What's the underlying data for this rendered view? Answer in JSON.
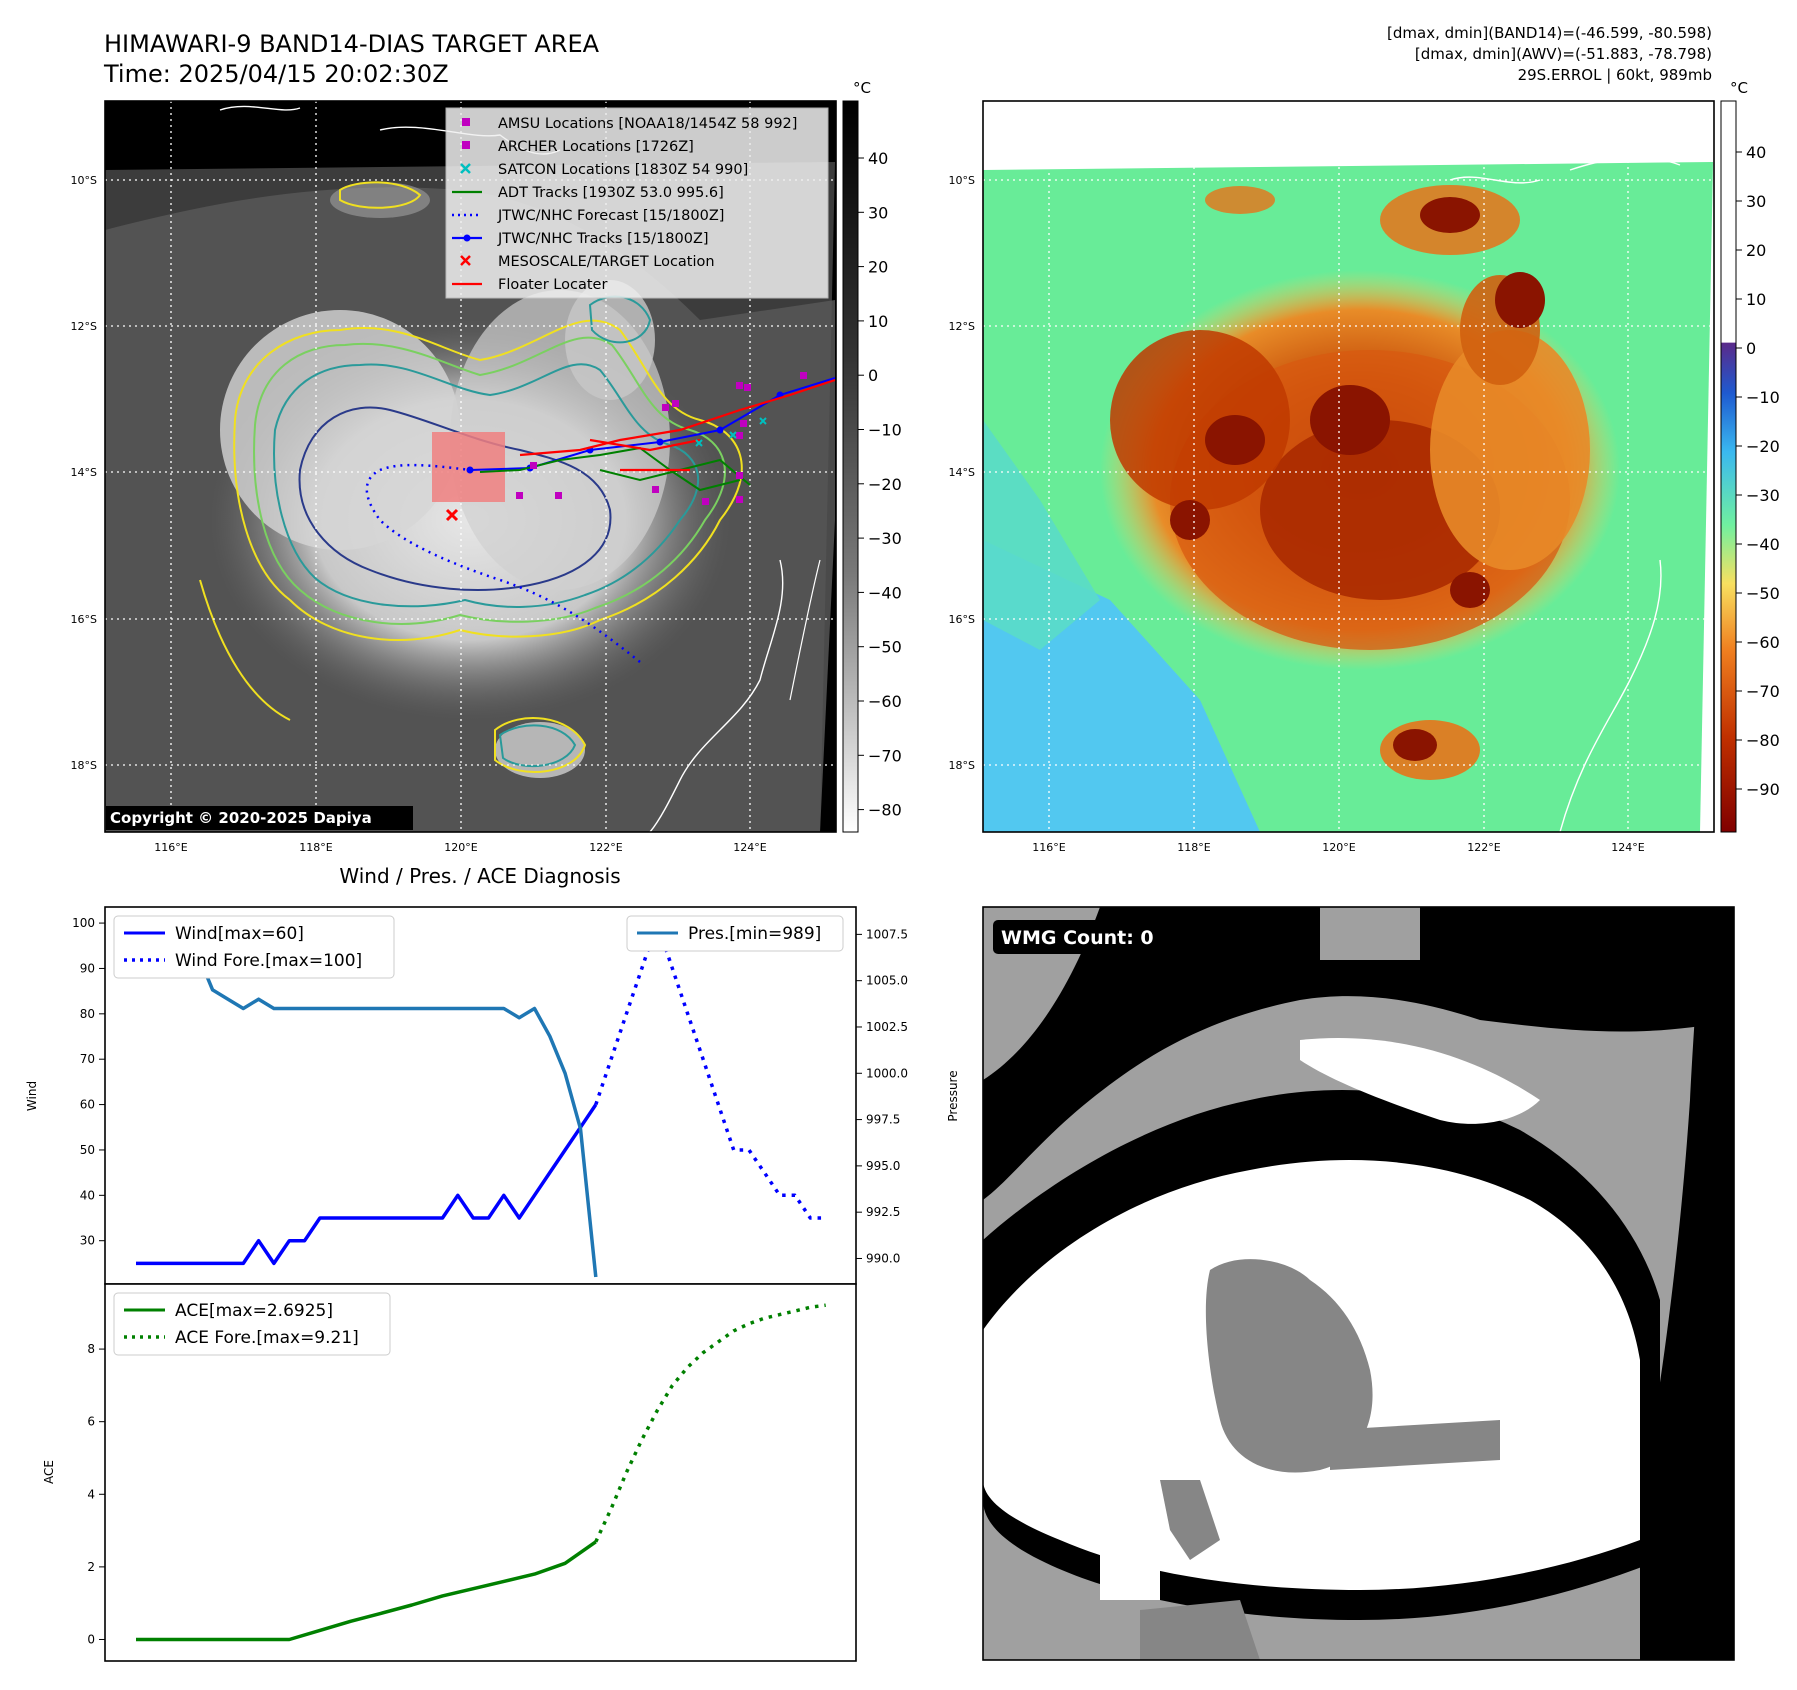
{
  "header": {
    "title": "HIMAWARI-9 BAND14-DIAS TARGET AREA",
    "time": "Time: 2025/04/15 20:02:30Z",
    "info1": "[dmax, dmin](BAND14)=(-46.599, -80.598)",
    "info2": "[dmax, dmin](AWV)=(-51.883, -78.798)",
    "info3": "29S.ERROL | 60kt, 989mb"
  },
  "map": {
    "lat_labels": [
      "10°S",
      "12°S",
      "14°S",
      "16°S",
      "18°S"
    ],
    "lon_labels": [
      "116°E",
      "118°E",
      "120°E",
      "122°E",
      "124°E"
    ],
    "copyright": "Copyright © 2020-2025 Dapiya",
    "legend": [
      {
        "label": "AMSU Locations [NOAA18/1454Z 58 992]",
        "marker": "square",
        "color": "#c000c0"
      },
      {
        "label": "ARCHER Locations [1726Z]",
        "marker": "square",
        "color": "#c000c0"
      },
      {
        "label": "SATCON Locations [1830Z 54 990]",
        "marker": "x",
        "color": "#00bfbf"
      },
      {
        "label": "ADT Tracks [1930Z 53.0 995.6]",
        "marker": "line",
        "color": "#008000"
      },
      {
        "label": "JTWC/NHC Forecast [15/1800Z]",
        "marker": "dotted",
        "color": "#0000ff"
      },
      {
        "label": "JTWC/NHC Tracks [15/1800Z]",
        "marker": "line-dot",
        "color": "#0000ff"
      },
      {
        "label": "MESOSCALE/TARGET Location",
        "marker": "x",
        "color": "#ff0000"
      },
      {
        "label": "Floater Locater",
        "marker": "line",
        "color": "#ff0000"
      }
    ]
  },
  "colorbar_gray": {
    "unit": "°C",
    "ticks": [
      "40",
      "30",
      "20",
      "10",
      "0",
      "−10",
      "−20",
      "−30",
      "−40",
      "−50",
      "−60",
      "−70",
      "−80"
    ]
  },
  "colorbar_color": {
    "unit": "°C",
    "ticks": [
      "40",
      "30",
      "20",
      "10",
      "0",
      "−10",
      "−20",
      "−30",
      "−40",
      "−50",
      "−60",
      "−70",
      "−80",
      "−90"
    ],
    "stops": [
      "#ffffff",
      "#5a2a8a",
      "#1e5ad0",
      "#3ab8f0",
      "#70f0a0",
      "#f8e060",
      "#f08020",
      "#c03000",
      "#800000"
    ]
  },
  "chart_data": [
    {
      "type": "line",
      "title": "Wind / Pres. / ACE Diagnosis",
      "ylabel": "Wind",
      "ylabel_right": "Pressure",
      "ylim": [
        22,
        102
      ],
      "ylim_right": [
        989,
        1008.6
      ],
      "yticks": [
        "30",
        "40",
        "50",
        "60",
        "70",
        "80",
        "90",
        "100"
      ],
      "yticks_right": [
        "990.0",
        "992.5",
        "995.0",
        "997.5",
        "1000.0",
        "1002.5",
        "1005.0",
        "1007.5"
      ],
      "legend_left": [
        "Wind[max=60]",
        "Wind Fore.[max=100]"
      ],
      "legend_right": [
        "Pres.[min=989]"
      ],
      "series": [
        {
          "name": "Wind[max=60]",
          "axis": "left",
          "style": "solid",
          "color": "#0000ff",
          "x": [
            0,
            1,
            2,
            3,
            4,
            5,
            6,
            7,
            8,
            9,
            10,
            11,
            12,
            13,
            14,
            15,
            16,
            17,
            18,
            19,
            20,
            21,
            22,
            23,
            24,
            25,
            26,
            27,
            28,
            29,
            30
          ],
          "y": [
            25,
            25,
            25,
            25,
            25,
            25,
            25,
            25,
            30,
            25,
            30,
            30,
            35,
            35,
            35,
            35,
            35,
            35,
            35,
            35,
            35,
            40,
            35,
            35,
            40,
            35,
            40,
            45,
            50,
            55,
            60
          ]
        },
        {
          "name": "Wind Fore.[max=100]",
          "axis": "left",
          "style": "dotted",
          "color": "#0000ff",
          "x": [
            30,
            31,
            32,
            33,
            34,
            35,
            36,
            37,
            38,
            39,
            40,
            41,
            42,
            43,
            44,
            45
          ],
          "y": [
            60,
            70,
            80,
            90,
            100,
            90,
            80,
            70,
            60,
            50,
            50,
            45,
            40,
            40,
            35,
            35
          ]
        },
        {
          "name": "Pres.[min=989]",
          "axis": "right",
          "style": "solid",
          "color": "#1f77b4",
          "x": [
            0,
            1,
            2,
            3,
            4,
            5,
            6,
            7,
            8,
            9,
            10,
            11,
            12,
            13,
            14,
            15,
            16,
            17,
            18,
            19,
            20,
            21,
            22,
            23,
            24,
            25,
            26,
            27,
            28,
            29,
            30
          ],
          "y": [
            1008,
            1007,
            1007,
            1006.5,
            1006.5,
            1004.5,
            1004,
            1003.5,
            1004,
            1003.5,
            1003.5,
            1003.5,
            1003.5,
            1003.5,
            1003.5,
            1003.5,
            1003.5,
            1003.5,
            1003.5,
            1003.5,
            1003.5,
            1003.5,
            1003.5,
            1003.5,
            1003.5,
            1003,
            1003.5,
            1002,
            1000,
            997,
            989
          ]
        }
      ]
    },
    {
      "type": "line",
      "ylabel": "ACE",
      "ylim": [
        -0.4,
        9.6
      ],
      "yticks": [
        "0",
        "2",
        "4",
        "6",
        "8"
      ],
      "legend": [
        "ACE[max=2.6925]",
        "ACE Fore.[max=9.21]"
      ],
      "series": [
        {
          "name": "ACE[max=2.6925]",
          "style": "solid",
          "color": "#008000",
          "x": [
            0,
            2,
            4,
            6,
            8,
            10,
            12,
            14,
            16,
            18,
            20,
            22,
            24,
            26,
            28,
            30
          ],
          "y": [
            0,
            0,
            0,
            0,
            0,
            0,
            0.25,
            0.5,
            0.72,
            0.95,
            1.2,
            1.4,
            1.6,
            1.8,
            2.1,
            2.69
          ]
        },
        {
          "name": "ACE Fore.[max=9.21]",
          "style": "dotted",
          "color": "#008000",
          "x": [
            30,
            31,
            32,
            33,
            34,
            35,
            36,
            37,
            38,
            39,
            40,
            41,
            42,
            43,
            44,
            45
          ],
          "y": [
            2.69,
            3.6,
            4.6,
            5.5,
            6.3,
            7,
            7.5,
            7.9,
            8.2,
            8.5,
            8.7,
            8.85,
            8.95,
            9.05,
            9.15,
            9.21
          ]
        }
      ]
    }
  ],
  "wmg": {
    "label": "WMG Count: 0"
  }
}
